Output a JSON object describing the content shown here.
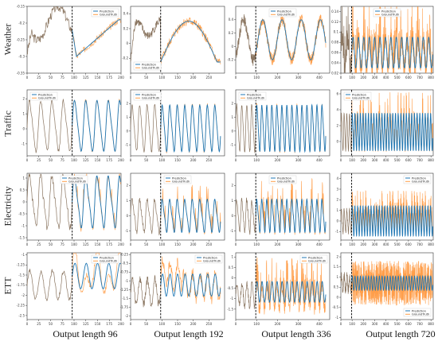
{
  "figure": {
    "row_labels": [
      "Weather",
      "Traffic",
      "Electricity",
      "ETT"
    ],
    "column_labels": [
      "Output length 96",
      "Output length 192",
      "Output length 336",
      "Output length 720"
    ]
  },
  "legend": {
    "prediction": "Prediction",
    "groundtruth": "GroundTruth"
  },
  "colors": {
    "prediction": "#1f77b4",
    "groundtruth": "#ff9e4a",
    "overlap": "#8a7560",
    "split_line": "#000000"
  },
  "chart_data": [
    {
      "type": "line",
      "row": "Weather",
      "output_length": 96,
      "input_length": 96,
      "split_x": 96,
      "xlim": [
        0,
        200
      ],
      "ylim": [
        -0.35,
        -0.15
      ],
      "x_ticks": [
        0,
        25,
        50,
        75,
        100,
        125,
        150,
        175,
        200
      ],
      "y_ticks": [
        -0.35,
        -0.3,
        -0.25,
        -0.2,
        -0.15
      ],
      "legend_position": "upper-right",
      "series": [
        {
          "name": "Prediction",
          "shape": "smooth dip then steady rise",
          "level": [
            -0.3,
            -0.19
          ]
        },
        {
          "name": "GroundTruth",
          "shape": "noisy around prediction",
          "level": [
            -0.3,
            -0.17
          ]
        }
      ]
    },
    {
      "type": "line",
      "row": "Weather",
      "output_length": 192,
      "input_length": 96,
      "split_x": 96,
      "xlim": [
        0,
        300
      ],
      "ylim": [
        -0.4,
        0.5
      ],
      "x_ticks": [
        0,
        50,
        100,
        150,
        200,
        250
      ],
      "y_ticks": [
        -0.2,
        0,
        0.2,
        0.4
      ],
      "legend_position": "lower-left",
      "series": [
        {
          "name": "Prediction",
          "shape": "dip, rise to peak, decline"
        },
        {
          "name": "GroundTruth",
          "shape": "noisy"
        }
      ]
    },
    {
      "type": "line",
      "row": "Weather",
      "output_length": 336,
      "input_length": 96,
      "split_x": 96,
      "xlim": [
        0,
        450
      ],
      "ylim": [
        -0.4,
        0.6
      ],
      "x_ticks": [
        0,
        100,
        200,
        300,
        400
      ],
      "y_ticks": [
        -0.2,
        0,
        0.2,
        0.4
      ],
      "legend_position": "top-center",
      "series": [
        {
          "name": "Prediction",
          "shape": "daily oscillation"
        },
        {
          "name": "GroundTruth",
          "shape": "noisy oscillation"
        }
      ]
    },
    {
      "type": "line",
      "row": "Weather",
      "output_length": 720,
      "input_length": 96,
      "split_x": 96,
      "xlim": [
        0,
        820
      ],
      "ylim": [
        0.02,
        0.15
      ],
      "x_ticks": [
        0,
        100,
        200,
        300,
        400,
        500,
        600,
        700,
        800
      ],
      "y_ticks": [
        0.02,
        0.04,
        0.06,
        0.08,
        0.1,
        0.12,
        0.14
      ],
      "legend_position": "top-center",
      "series": [
        {
          "name": "Prediction",
          "shape": "regular daily oscillation"
        },
        {
          "name": "GroundTruth",
          "shape": "noisy spikes"
        }
      ]
    },
    {
      "type": "line",
      "row": "Traffic",
      "output_length": 96,
      "input_length": 96,
      "split_x": 96,
      "xlim": [
        0,
        200
      ],
      "ylim": [
        -1.8,
        2.6
      ],
      "x_ticks": [
        0,
        25,
        50,
        75,
        100,
        125,
        150,
        175,
        200
      ],
      "y_ticks": [
        -1,
        0,
        1,
        2
      ],
      "legend_position": "top-left",
      "series": [
        {
          "name": "Prediction"
        },
        {
          "name": "GroundTruth"
        }
      ]
    },
    {
      "type": "line",
      "row": "Traffic",
      "output_length": 192,
      "input_length": 96,
      "split_x": 96,
      "xlim": [
        0,
        300
      ],
      "ylim": [
        -1.8,
        3
      ],
      "x_ticks": [
        0,
        50,
        100,
        150,
        200,
        250
      ],
      "y_ticks": [
        -1,
        0,
        1,
        2
      ],
      "legend_position": "top-left",
      "series": [
        {
          "name": "Prediction"
        },
        {
          "name": "GroundTruth"
        }
      ]
    },
    {
      "type": "line",
      "row": "Traffic",
      "output_length": 336,
      "input_length": 96,
      "split_x": 96,
      "xlim": [
        0,
        450
      ],
      "ylim": [
        -1.8,
        3
      ],
      "x_ticks": [
        0,
        100,
        200,
        300,
        400
      ],
      "y_ticks": [
        -1,
        0,
        1,
        2
      ],
      "legend_position": "top-left",
      "series": [
        {
          "name": "Prediction"
        },
        {
          "name": "GroundTruth"
        }
      ]
    },
    {
      "type": "line",
      "row": "Traffic",
      "output_length": 720,
      "input_length": 96,
      "split_x": 96,
      "xlim": [
        0,
        820
      ],
      "ylim": [
        -1.8,
        6.5
      ],
      "x_ticks": [
        0,
        100,
        200,
        300,
        400,
        500,
        600,
        700,
        800
      ],
      "y_ticks": [
        0,
        2,
        4,
        6
      ],
      "legend_position": "top-left",
      "series": [
        {
          "name": "Prediction"
        },
        {
          "name": "GroundTruth"
        }
      ]
    },
    {
      "type": "line",
      "row": "Electricity",
      "output_length": 96,
      "input_length": 96,
      "split_x": 96,
      "xlim": [
        0,
        200
      ],
      "ylim": [
        -1.6,
        1.2
      ],
      "x_ticks": [
        0,
        25,
        50,
        75,
        100,
        125,
        150,
        175,
        200
      ],
      "y_ticks": [
        -1.5,
        -1.0,
        -0.5,
        0.0,
        0.5,
        1.0
      ],
      "legend_position": "top-center",
      "series": [
        {
          "name": "Prediction"
        },
        {
          "name": "GroundTruth"
        }
      ]
    },
    {
      "type": "line",
      "row": "Electricity",
      "output_length": 192,
      "input_length": 96,
      "split_x": 96,
      "xlim": [
        0,
        300
      ],
      "ylim": [
        -1.6,
        2.8
      ],
      "x_ticks": [
        0,
        50,
        100,
        150,
        200,
        250
      ],
      "y_ticks": [
        -1,
        0,
        1,
        2
      ],
      "legend_position": "top-center",
      "series": [
        {
          "name": "Prediction"
        },
        {
          "name": "GroundTruth"
        }
      ]
    },
    {
      "type": "line",
      "row": "Electricity",
      "output_length": 336,
      "input_length": 96,
      "split_x": 96,
      "xlim": [
        0,
        450
      ],
      "ylim": [
        -1.6,
        2.8
      ],
      "x_ticks": [
        0,
        100,
        200,
        300,
        400
      ],
      "y_ticks": [
        -1,
        0,
        1,
        2
      ],
      "legend_position": "top-center",
      "series": [
        {
          "name": "Prediction"
        },
        {
          "name": "GroundTruth"
        }
      ]
    },
    {
      "type": "line",
      "row": "Electricity",
      "output_length": 720,
      "input_length": 96,
      "split_x": 96,
      "xlim": [
        0,
        820
      ],
      "ylim": [
        -1.8,
        4.5
      ],
      "x_ticks": [
        0,
        100,
        200,
        300,
        400,
        500,
        600,
        700,
        800
      ],
      "y_ticks": [
        -1,
        0,
        1,
        2,
        3,
        4
      ],
      "legend_position": "top-right",
      "series": [
        {
          "name": "Prediction"
        },
        {
          "name": "GroundTruth"
        }
      ]
    },
    {
      "type": "line",
      "row": "ETT",
      "output_length": 96,
      "input_length": 96,
      "split_x": 96,
      "xlim": [
        0,
        200
      ],
      "ylim": [
        -2.6,
        -0.95
      ],
      "x_ticks": [
        0,
        25,
        50,
        75,
        100,
        125,
        150,
        175,
        200
      ],
      "y_ticks": [
        -2.5,
        -2.25,
        -2.0,
        -1.75,
        -1.5,
        -1.25,
        -1.0
      ],
      "legend_position": "top-right",
      "series": [
        {
          "name": "Prediction"
        },
        {
          "name": "GroundTruth"
        }
      ]
    },
    {
      "type": "line",
      "row": "ETT",
      "output_length": 192,
      "input_length": 96,
      "split_x": 96,
      "xlim": [
        0,
        300
      ],
      "ylim": [
        -2.1,
        -0.2
      ],
      "x_ticks": [
        0,
        50,
        100,
        150,
        200,
        250
      ],
      "y_ticks": [
        -2.0,
        -1.75,
        -1.5,
        -1.25,
        -1.0,
        -0.75,
        -0.5,
        -0.25
      ],
      "legend_position": "top-right",
      "series": [
        {
          "name": "Prediction"
        },
        {
          "name": "GroundTruth"
        }
      ]
    },
    {
      "type": "line",
      "row": "ETT",
      "output_length": 336,
      "input_length": 96,
      "split_x": 96,
      "xlim": [
        0,
        450
      ],
      "ylim": [
        -2.0,
        1.2
      ],
      "x_ticks": [
        0,
        100,
        200,
        300,
        400
      ],
      "y_ticks": [
        -1.5,
        -1.0,
        -0.5,
        0.0,
        0.5,
        1.0
      ],
      "legend_position": "top-right",
      "series": [
        {
          "name": "Prediction"
        },
        {
          "name": "GroundTruth"
        }
      ]
    },
    {
      "type": "line",
      "row": "ETT",
      "output_length": 720,
      "input_length": 96,
      "split_x": 96,
      "xlim": [
        0,
        820
      ],
      "ylim": [
        -1.1,
        2.2
      ],
      "x_ticks": [
        0,
        100,
        200,
        300,
        400,
        500,
        600,
        700,
        800
      ],
      "y_ticks": [
        -1.0,
        -0.5,
        0.0,
        0.5,
        1.0,
        1.5,
        2.0
      ],
      "legend_position": "lower-right",
      "series": [
        {
          "name": "Prediction"
        },
        {
          "name": "GroundTruth"
        }
      ]
    }
  ]
}
